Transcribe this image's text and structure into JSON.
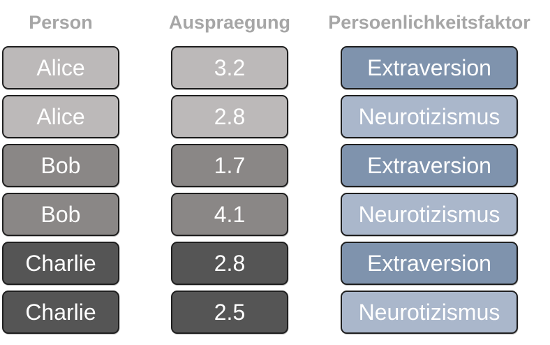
{
  "headers": {
    "person": "Person",
    "value": "Auspraegung",
    "factor": "Persoenlichkeitsfaktor"
  },
  "rows": [
    {
      "person": "Alice",
      "value": "3.2",
      "factor": "Extraversion"
    },
    {
      "person": "Alice",
      "value": "2.8",
      "factor": "Neurotizismus"
    },
    {
      "person": "Bob",
      "value": "1.7",
      "factor": "Extraversion"
    },
    {
      "person": "Bob",
      "value": "4.1",
      "factor": "Neurotizismus"
    },
    {
      "person": "Charlie",
      "value": "2.8",
      "factor": "Extraversion"
    },
    {
      "person": "Charlie",
      "value": "2.5",
      "factor": "Neurotizismus"
    }
  ],
  "colors": {
    "header_text": "#a6a6a6",
    "alice_fill": "#bcb9b9",
    "bob_fill": "#8a8786",
    "charlie_fill": "#555555",
    "extraversion_fill": "#7f93ad",
    "neurotizismus_fill": "#aab7cb",
    "border": "#1f1f1f"
  }
}
